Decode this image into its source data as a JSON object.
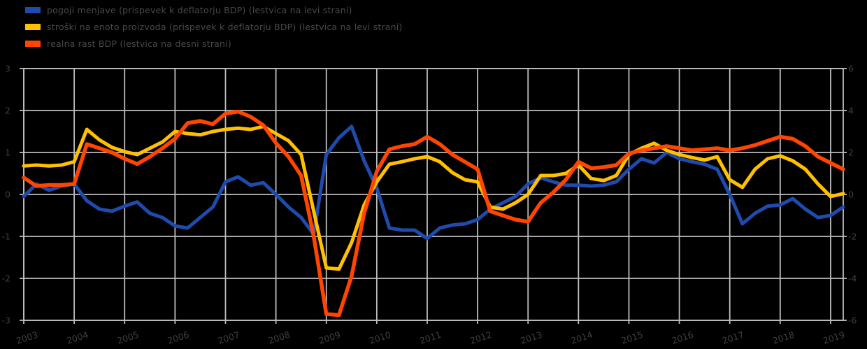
{
  "legend": {
    "items": [
      {
        "label": "pogoji menjave (prispevek k deflatorju BDP) (lestvica na levi strani)",
        "color": "#1E4BAD",
        "icon": "blue-line-swatch"
      },
      {
        "label": "stroški na enoto proizvoda (prispevek k deflatorju BDP) (lestvica na levi strani)",
        "color": "#FFC000",
        "icon": "yellow-line-swatch"
      },
      {
        "label": "realna rast BDP (lestvica na desni strani)",
        "color": "#FF4500",
        "icon": "orange-line-swatch"
      }
    ]
  },
  "chart_data": {
    "type": "line",
    "title": "",
    "x_unit": "quarterly",
    "x_start": "2003Q1",
    "x_end": "2019Q2",
    "years": [
      "2003",
      "2004",
      "2005",
      "2006",
      "2007",
      "2008",
      "2009",
      "2010",
      "2011",
      "2012",
      "2013",
      "2014",
      "2015",
      "2016",
      "2017",
      "2018",
      "2019"
    ],
    "left_axis": {
      "min": -3,
      "max": 3,
      "step": 1,
      "ticks_top_to_bottom": [
        "3",
        "2",
        "1",
        "0",
        "-1",
        "-2",
        "-3"
      ]
    },
    "right_axis": {
      "min": -6,
      "max": 6,
      "step": 2,
      "ticks_top_to_bottom": [
        "6",
        "4",
        "2",
        "0",
        "-2",
        "-4",
        "-6"
      ]
    },
    "grid": true,
    "background": "#000000",
    "gridline_color": "#BDBDBD",
    "text_color": "#3F3F3F",
    "legend_position": "top-left",
    "x_labels_rotation": -18,
    "series": [
      {
        "name": "pogoji menjave (prispevek k deflatorju BDP) (lestvica na levi strani)",
        "axis": "left",
        "color": "#1E4BAD",
        "width": 5,
        "values": [
          -0.05,
          0.25,
          0.1,
          0.2,
          0.25,
          -0.15,
          -0.35,
          -0.4,
          -0.28,
          -0.18,
          -0.45,
          -0.55,
          -0.75,
          -0.8,
          -0.55,
          -0.3,
          0.3,
          0.42,
          0.22,
          0.28,
          0.0,
          -0.3,
          -0.55,
          -0.95,
          0.95,
          1.35,
          1.62,
          0.8,
          0.15,
          -0.8,
          -0.85,
          -0.85,
          -1.05,
          -0.8,
          -0.73,
          -0.7,
          -0.6,
          -0.35,
          -0.2,
          -0.05,
          0.25,
          0.4,
          0.3,
          0.22,
          0.22,
          0.2,
          0.22,
          0.3,
          0.6,
          0.85,
          0.75,
          1.0,
          0.85,
          0.78,
          0.72,
          0.6,
          0.0,
          -0.7,
          -0.45,
          -0.28,
          -0.25,
          -0.1,
          -0.35,
          -0.55,
          -0.5,
          -0.3
        ]
      },
      {
        "name": "stroški na enoto proizvoda (prispevek k deflatorju BDP) (lestvica na levi strani)",
        "axis": "left",
        "color": "#FFC000",
        "width": 5,
        "values": [
          0.68,
          0.7,
          0.68,
          0.7,
          0.78,
          1.55,
          1.3,
          1.12,
          1.02,
          0.95,
          1.1,
          1.25,
          1.5,
          1.45,
          1.42,
          1.5,
          1.55,
          1.58,
          1.55,
          1.62,
          1.45,
          1.28,
          0.95,
          -0.4,
          -1.75,
          -1.78,
          -1.15,
          -0.25,
          0.3,
          0.72,
          0.78,
          0.85,
          0.9,
          0.78,
          0.52,
          0.35,
          0.3,
          -0.3,
          -0.35,
          -0.2,
          0.0,
          0.45,
          0.45,
          0.5,
          0.7,
          0.38,
          0.33,
          0.45,
          0.95,
          1.1,
          1.22,
          1.05,
          0.95,
          0.88,
          0.82,
          0.9,
          0.35,
          0.17,
          0.6,
          0.85,
          0.92,
          0.8,
          0.6,
          0.25,
          -0.05,
          0.02
        ]
      },
      {
        "name": "realna rast BDP (lestvica na desni strani)",
        "axis": "right",
        "color": "#FF4500",
        "width": 5.5,
        "values": [
          0.8,
          0.4,
          0.45,
          0.45,
          0.5,
          2.4,
          2.2,
          2.0,
          1.7,
          1.45,
          1.8,
          2.2,
          2.65,
          3.4,
          3.5,
          3.35,
          3.85,
          3.95,
          3.7,
          3.3,
          2.45,
          1.8,
          0.9,
          -2.0,
          -5.7,
          -5.75,
          -3.9,
          -0.9,
          1.1,
          2.15,
          2.3,
          2.4,
          2.75,
          2.4,
          1.9,
          1.55,
          1.2,
          -0.8,
          -1.0,
          -1.2,
          -1.3,
          -0.4,
          0.1,
          0.7,
          1.55,
          1.25,
          1.3,
          1.4,
          1.95,
          2.1,
          2.2,
          2.3,
          2.2,
          2.1,
          2.15,
          2.2,
          2.1,
          2.2,
          2.35,
          2.55,
          2.75,
          2.65,
          2.3,
          1.8,
          1.5,
          1.2
        ]
      }
    ]
  }
}
